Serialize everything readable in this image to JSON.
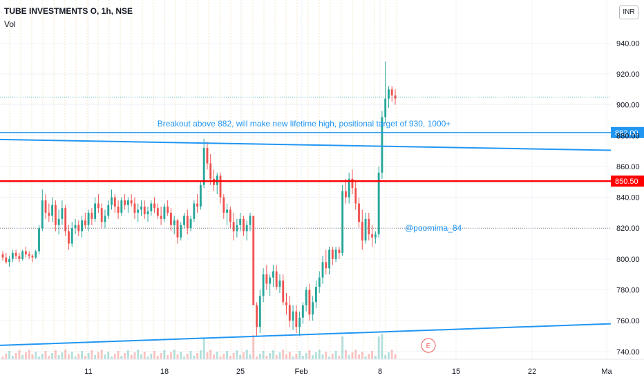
{
  "header": {
    "symbol_line": "TUBE INVESTMENTS O, 1h, NSE",
    "volume_label": "Vol",
    "currency_button": "INR"
  },
  "colors": {
    "up": "#26a69a",
    "down": "#ef5350",
    "trendline": "#2196f3",
    "resistance": "#ff0000",
    "annotation": "#2196f3",
    "grid": "#f0f3fa",
    "weekly_line": "#f5e6c8",
    "dotted_level": "#26a69a"
  },
  "chart_data": {
    "type": "candlestick",
    "title": "TUBE INVESTMENTS O, 1h, NSE",
    "y_axis": {
      "ticks": [
        740,
        760,
        780,
        800,
        820,
        840,
        860,
        880,
        900,
        920,
        940
      ],
      "tick_labels": [
        "740.00",
        "760.00",
        "780.00",
        "800.00",
        "820.00",
        "840.00",
        "860.00",
        "880.00",
        "900.00",
        "920.00",
        "940.00"
      ],
      "ylim": [
        735,
        950
      ],
      "side": "right"
    },
    "x_axis": {
      "tick_labels": [
        "11",
        "18",
        "25",
        "Feb",
        "8",
        "15",
        "22",
        "Ma"
      ]
    },
    "levels": [
      {
        "name": "breakout level",
        "value": 882.0,
        "label": "882.00",
        "color": "#2196f3"
      },
      {
        "name": "support/resistance",
        "value": 850.5,
        "label": "850.50",
        "color": "#ff0000"
      }
    ],
    "trendlines": [
      {
        "name": "upper descending trendline",
        "from_value": 877.5,
        "to_value": 870.5,
        "color": "#2196f3"
      },
      {
        "name": "lower ascending trendline",
        "from_value": 744.0,
        "to_value": 758.0,
        "color": "#2196f3"
      }
    ],
    "annotations": [
      {
        "text": "Breakout above 882, will make new lifetime high, positional target of 930, 1000+"
      },
      {
        "text": "@poornima_84"
      }
    ],
    "event_marker": "E",
    "candles": [
      [
        803,
        805,
        799,
        801
      ],
      [
        801,
        804,
        797,
        798
      ],
      [
        798,
        802,
        795,
        800
      ],
      [
        800,
        806,
        798,
        804
      ],
      [
        804,
        806,
        800,
        802
      ],
      [
        802,
        804,
        798,
        800
      ],
      [
        800,
        806,
        799,
        805
      ],
      [
        805,
        808,
        801,
        803
      ],
      [
        803,
        805,
        800,
        802
      ],
      [
        802,
        803,
        798,
        801
      ],
      [
        801,
        806,
        800,
        805
      ],
      [
        805,
        822,
        803,
        820
      ],
      [
        820,
        845,
        818,
        838
      ],
      [
        838,
        842,
        826,
        830
      ],
      [
        830,
        836,
        824,
        828
      ],
      [
        828,
        840,
        824,
        835
      ],
      [
        835,
        838,
        818,
        822
      ],
      [
        822,
        832,
        816,
        826
      ],
      [
        826,
        838,
        822,
        833
      ],
      [
        833,
        835,
        815,
        818
      ],
      [
        818,
        822,
        806,
        810
      ],
      [
        810,
        824,
        808,
        820
      ],
      [
        820,
        826,
        816,
        822
      ],
      [
        822,
        825,
        815,
        818
      ],
      [
        818,
        828,
        814,
        825
      ],
      [
        825,
        830,
        820,
        822
      ],
      [
        822,
        832,
        818,
        830
      ],
      [
        830,
        833,
        822,
        826
      ],
      [
        826,
        840,
        824,
        836
      ],
      [
        836,
        842,
        830,
        833
      ],
      [
        833,
        836,
        820,
        824
      ],
      [
        824,
        832,
        820,
        828
      ],
      [
        828,
        838,
        826,
        835
      ],
      [
        835,
        845,
        832,
        840
      ],
      [
        840,
        842,
        830,
        834
      ],
      [
        834,
        838,
        826,
        830
      ],
      [
        830,
        840,
        828,
        838
      ],
      [
        838,
        842,
        832,
        835
      ],
      [
        835,
        840,
        830,
        838
      ],
      [
        838,
        842,
        834,
        836
      ],
      [
        836,
        840,
        826,
        830
      ],
      [
        830,
        836,
        824,
        832
      ],
      [
        832,
        838,
        828,
        834
      ],
      [
        834,
        838,
        826,
        829
      ],
      [
        829,
        834,
        824,
        831
      ],
      [
        831,
        838,
        828,
        836
      ],
      [
        836,
        840,
        830,
        833
      ],
      [
        833,
        836,
        826,
        828
      ],
      [
        828,
        834,
        822,
        826
      ],
      [
        826,
        836,
        824,
        834
      ],
      [
        834,
        838,
        828,
        830
      ],
      [
        830,
        833,
        818,
        822
      ],
      [
        822,
        828,
        816,
        825
      ],
      [
        825,
        826,
        810,
        814
      ],
      [
        814,
        824,
        812,
        822
      ],
      [
        822,
        830,
        820,
        828
      ],
      [
        828,
        832,
        816,
        820
      ],
      [
        820,
        828,
        818,
        826
      ],
      [
        826,
        838,
        824,
        836
      ],
      [
        836,
        842,
        830,
        834
      ],
      [
        834,
        850,
        832,
        848
      ],
      [
        848,
        878,
        846,
        872
      ],
      [
        872,
        876,
        858,
        862
      ],
      [
        862,
        868,
        848,
        852
      ],
      [
        852,
        858,
        844,
        848
      ],
      [
        848,
        856,
        842,
        854
      ],
      [
        854,
        856,
        836,
        840
      ],
      [
        840,
        842,
        826,
        830
      ],
      [
        830,
        836,
        822,
        832
      ],
      [
        832,
        834,
        820,
        824
      ],
      [
        824,
        830,
        812,
        818
      ],
      [
        818,
        826,
        814,
        822
      ],
      [
        822,
        830,
        818,
        826
      ],
      [
        826,
        828,
        815,
        818
      ],
      [
        818,
        825,
        812,
        822
      ],
      [
        822,
        830,
        818,
        828
      ],
      [
        828,
        828,
        770,
        770
      ],
      [
        770,
        772,
        750,
        756
      ],
      [
        756,
        780,
        752,
        776
      ],
      [
        776,
        794,
        772,
        790
      ],
      [
        790,
        796,
        780,
        784
      ],
      [
        784,
        790,
        776,
        788
      ],
      [
        788,
        796,
        782,
        792
      ],
      [
        792,
        796,
        780,
        782
      ],
      [
        782,
        790,
        778,
        786
      ],
      [
        786,
        790,
        770,
        772
      ],
      [
        772,
        778,
        764,
        770
      ],
      [
        770,
        776,
        756,
        760
      ],
      [
        760,
        770,
        754,
        766
      ],
      [
        766,
        770,
        752,
        756
      ],
      [
        756,
        766,
        750,
        762
      ],
      [
        762,
        772,
        758,
        770
      ],
      [
        770,
        782,
        766,
        780
      ],
      [
        780,
        784,
        760,
        764
      ],
      [
        764,
        776,
        760,
        772
      ],
      [
        772,
        786,
        768,
        782
      ],
      [
        782,
        792,
        778,
        788
      ],
      [
        788,
        802,
        784,
        798
      ],
      [
        798,
        806,
        790,
        794
      ],
      [
        794,
        808,
        790,
        806
      ],
      [
        806,
        808,
        796,
        800
      ],
      [
        800,
        808,
        798,
        806
      ],
      [
        806,
        808,
        800,
        804
      ],
      [
        804,
        848,
        802,
        844
      ],
      [
        844,
        852,
        836,
        840
      ],
      [
        840,
        856,
        836,
        852
      ],
      [
        852,
        858,
        842,
        846
      ],
      [
        846,
        850,
        832,
        836
      ],
      [
        836,
        840,
        820,
        824
      ],
      [
        824,
        832,
        806,
        812
      ],
      [
        812,
        830,
        810,
        826
      ],
      [
        826,
        830,
        812,
        816
      ],
      [
        816,
        822,
        808,
        814
      ],
      [
        814,
        818,
        810,
        816
      ],
      [
        816,
        860,
        814,
        856
      ],
      [
        856,
        896,
        852,
        892
      ],
      [
        892,
        928,
        888,
        904
      ],
      [
        904,
        912,
        898,
        910
      ],
      [
        910,
        912,
        902,
        906
      ],
      [
        906,
        910,
        900,
        904
      ]
    ]
  }
}
